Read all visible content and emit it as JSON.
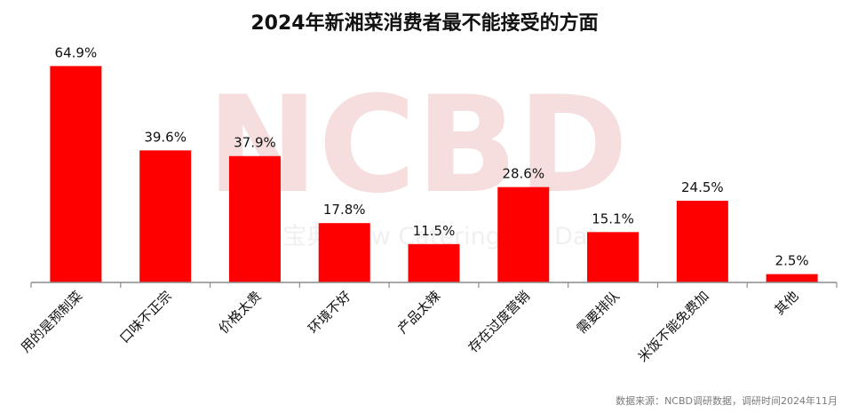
{
  "title": "2024年新湘菜消费者最不能接受的方面",
  "source": "数据来源：NCBD调研数据，调研时间2024年11月",
  "watermark": {
    "main": "NCBD",
    "sub": "餐宝典 New Catering Big Data"
  },
  "colors": {
    "bar": "#ff0000",
    "axis": "#8c8c8c"
  },
  "chart_data": {
    "type": "bar",
    "title": "2024年新湘菜消费者最不能接受的方面",
    "categories": [
      "用的是预制菜",
      "口味不正宗",
      "价格太贵",
      "环境不好",
      "产品太辣",
      "存在过度营销",
      "需要排队",
      "米饭不能免费加",
      "其他"
    ],
    "values": [
      64.9,
      39.6,
      37.9,
      17.8,
      11.5,
      28.6,
      15.1,
      24.5,
      2.5
    ],
    "value_labels": [
      "64.9%",
      "39.6%",
      "37.9%",
      "17.8%",
      "11.5%",
      "28.6%",
      "15.1%",
      "24.5%",
      "2.5%"
    ],
    "unit": "%",
    "ylim": [
      0,
      65
    ],
    "grid": false,
    "legend": "none"
  }
}
